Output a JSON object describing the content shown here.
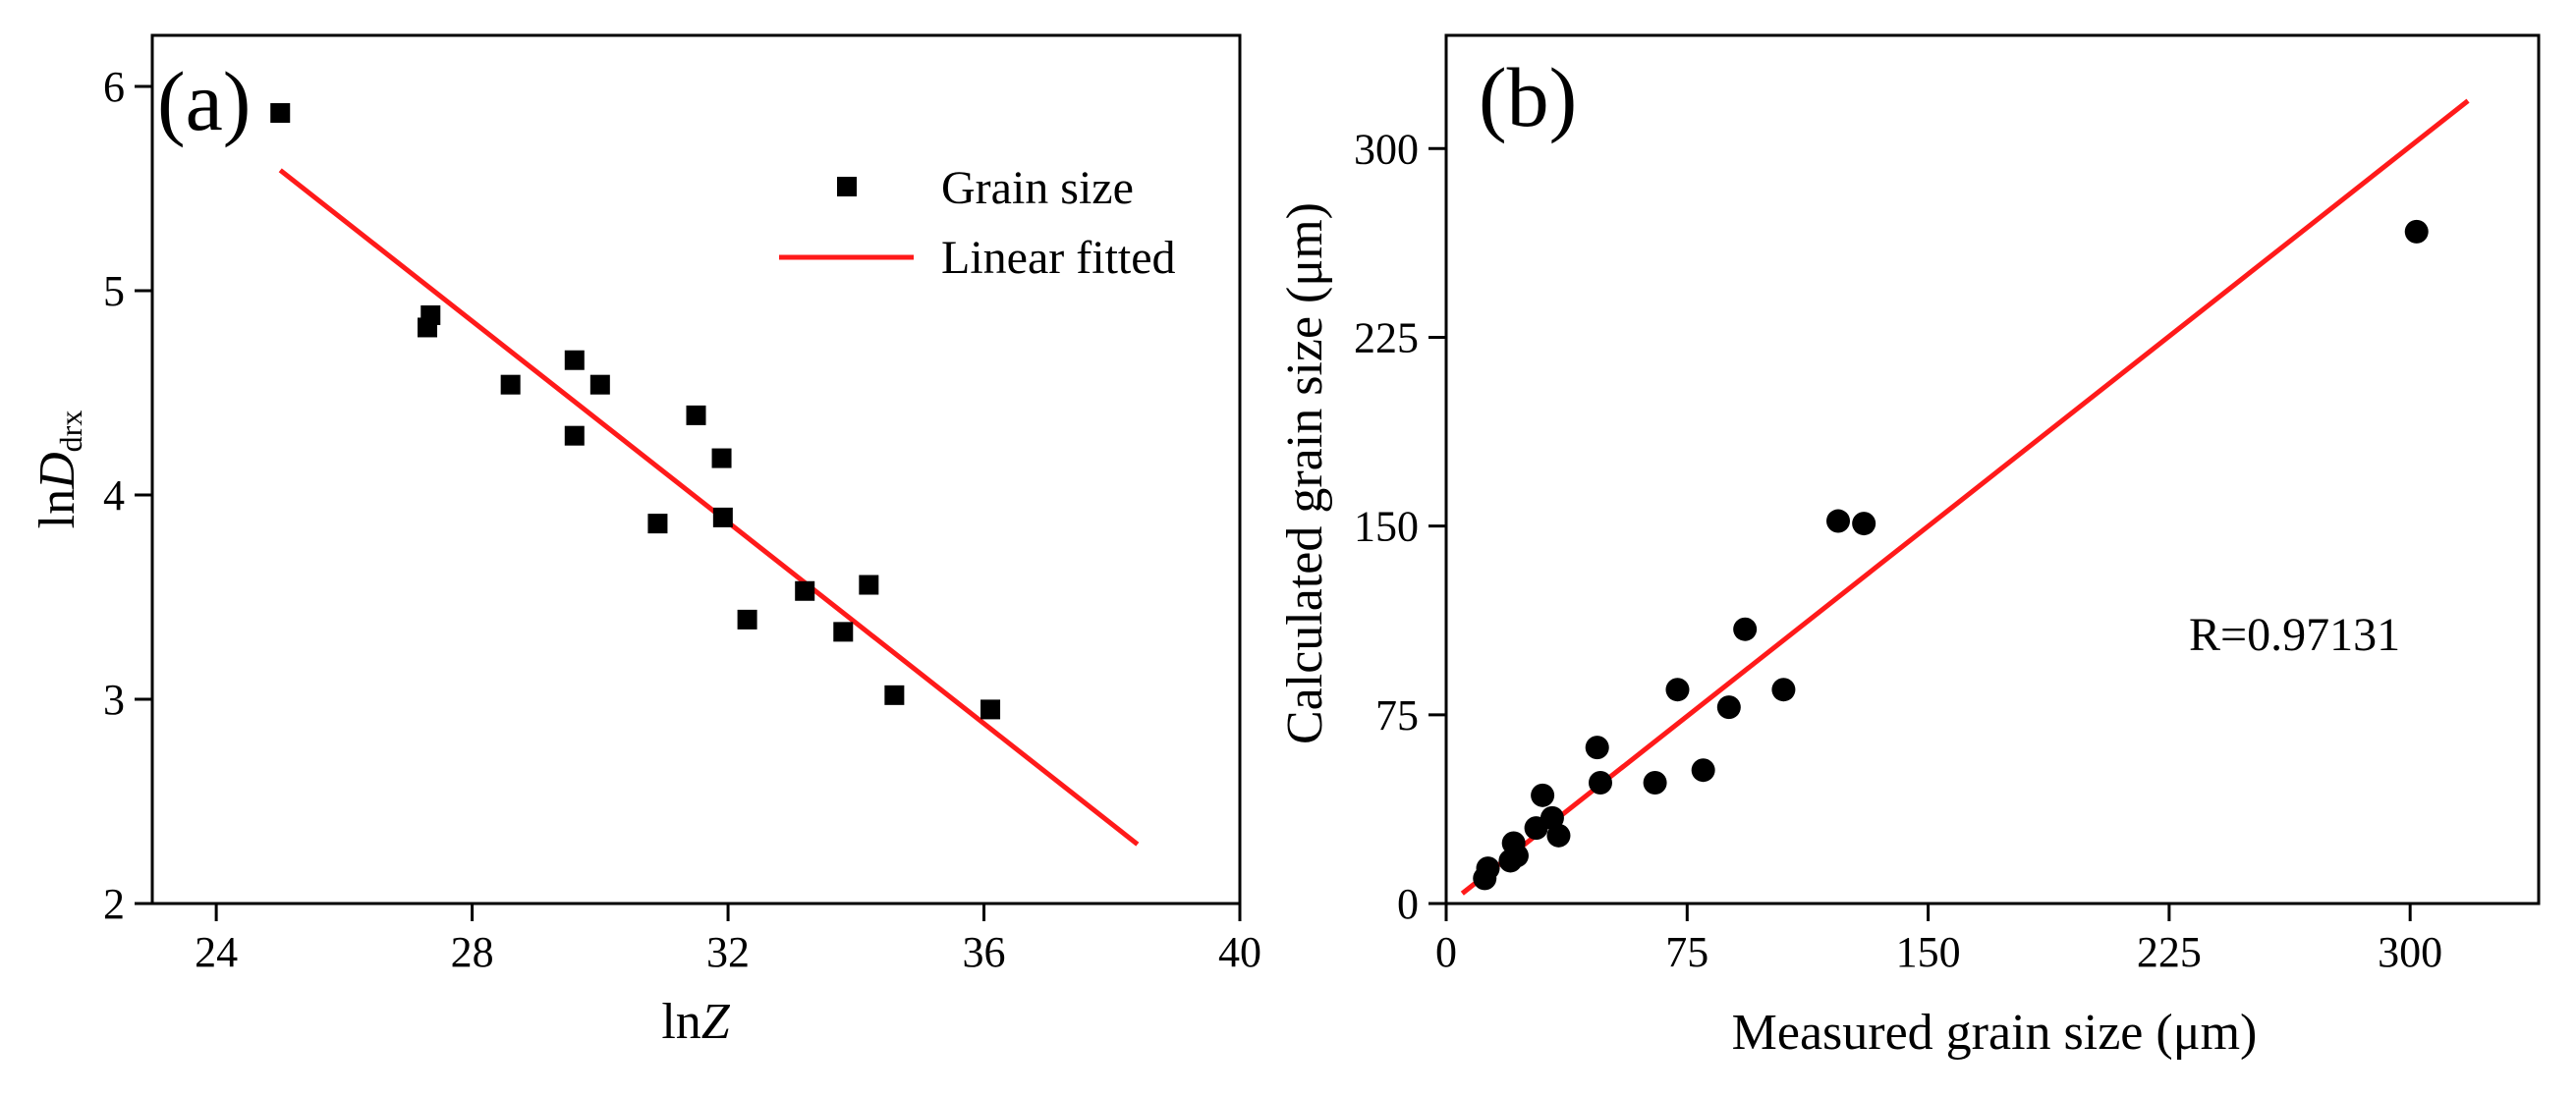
{
  "chart_data": [
    {
      "type": "scatter",
      "panel_label": "(a)",
      "xlabel_prefix": "ln",
      "xlabel_italic": "Z",
      "ylabel_prefix": "ln",
      "ylabel_italic": "D",
      "ylabel_sub": "drx",
      "xlim": [
        23,
        40
      ],
      "ylim": [
        2,
        6.25
      ],
      "xticks": [
        24,
        28,
        32,
        36,
        40
      ],
      "yticks": [
        2,
        3,
        4,
        5,
        6
      ],
      "xtick_labels": [
        "24",
        "28",
        "32",
        "36",
        "40"
      ],
      "ytick_labels": [
        "2",
        "3",
        "4",
        "5",
        "6"
      ],
      "legend": {
        "placement": "top-right",
        "entries": [
          {
            "label": "Grain size",
            "marker": "square"
          },
          {
            "label": "Linear fitted",
            "marker": "line"
          }
        ]
      },
      "series": [
        {
          "name": "Grain size",
          "marker": "square",
          "points": [
            [
              25.0,
              5.87
            ],
            [
              27.3,
              4.82
            ],
            [
              27.35,
              4.88
            ],
            [
              28.6,
              4.54
            ],
            [
              29.6,
              4.66
            ],
            [
              29.6,
              4.29
            ],
            [
              30.0,
              4.54
            ],
            [
              30.9,
              3.86
            ],
            [
              31.5,
              4.39
            ],
            [
              31.9,
              4.18
            ],
            [
              31.92,
              3.89
            ],
            [
              32.3,
              3.39
            ],
            [
              33.2,
              3.53
            ],
            [
              33.8,
              3.33
            ],
            [
              34.2,
              3.56
            ],
            [
              34.6,
              3.02
            ],
            [
              36.1,
              2.95
            ]
          ]
        },
        {
          "name": "Linear fitted",
          "type": "line",
          "color": "#ff1a1a",
          "points": [
            [
              25.0,
              5.59
            ],
            [
              38.4,
              2.29
            ]
          ]
        }
      ]
    },
    {
      "type": "scatter",
      "panel_label": "(b)",
      "xlabel": "Measured  grain size (μm)",
      "ylabel": "Calculated grain size (μm)",
      "xlim": [
        0,
        340
      ],
      "ylim": [
        0,
        345
      ],
      "xticks": [
        0,
        75,
        150,
        225,
        300
      ],
      "yticks": [
        0,
        75,
        150,
        225,
        300
      ],
      "xtick_labels": [
        "0",
        "75",
        "150",
        "225",
        "300"
      ],
      "ytick_labels": [
        "0",
        "75",
        "150",
        "225",
        "300"
      ],
      "annotation": "R=0.97131",
      "series": [
        {
          "name": "",
          "marker": "circle",
          "points": [
            [
              12,
              10
            ],
            [
              13,
              14
            ],
            [
              20,
              17
            ],
            [
              21,
              24
            ],
            [
              22,
              19
            ],
            [
              28,
              30
            ],
            [
              30,
              43
            ],
            [
              33,
              34
            ],
            [
              35,
              27
            ],
            [
              47,
              62
            ],
            [
              48,
              48
            ],
            [
              65,
              48
            ],
            [
              72,
              85
            ],
            [
              80,
              53
            ],
            [
              88,
              78
            ],
            [
              93,
              109
            ],
            [
              105,
              85
            ],
            [
              122,
              152
            ],
            [
              130,
              151
            ],
            [
              302,
              267
            ]
          ]
        },
        {
          "name": "",
          "type": "line",
          "color": "#ff1a1a",
          "points": [
            [
              5,
              4
            ],
            [
              318,
              319
            ]
          ]
        }
      ]
    }
  ]
}
